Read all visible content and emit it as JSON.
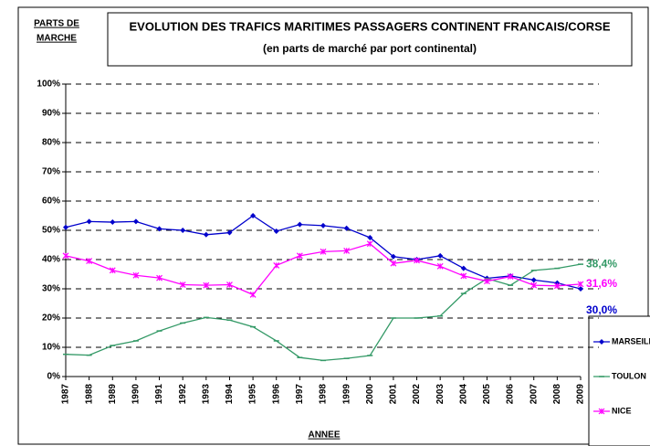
{
  "chart_data": {
    "type": "line",
    "title": "EVOLUTION DES TRAFICS MARITIMES PASSAGERS CONTINENT FRANCAIS/CORSE",
    "subtitle": "(en parts de marché par port continental)",
    "y_label": [
      "PARTS DE",
      "MARCHE"
    ],
    "x_label": "ANNEE",
    "categories": [
      "1987",
      "1988",
      "1989",
      "1990",
      "1991",
      "1992",
      "1993",
      "1994",
      "1995",
      "1996",
      "1997",
      "1998",
      "1999",
      "2000",
      "2001",
      "2002",
      "2003",
      "2004",
      "2005",
      "2006",
      "2007",
      "2008",
      "2009"
    ],
    "ylim": [
      0,
      100
    ],
    "yticks": [
      {
        "value": 0,
        "label": "0%"
      },
      {
        "value": 10,
        "label": "10%"
      },
      {
        "value": 20,
        "label": "20%"
      },
      {
        "value": 30,
        "label": "30%"
      },
      {
        "value": 40,
        "label": "40%"
      },
      {
        "value": 50,
        "label": "50%"
      },
      {
        "value": 60,
        "label": "60%"
      },
      {
        "value": 70,
        "label": "70%"
      },
      {
        "value": 80,
        "label": "80%"
      },
      {
        "value": 90,
        "label": "90%"
      },
      {
        "value": 100,
        "label": "100%"
      }
    ],
    "grid": true,
    "series": [
      {
        "name": "MARSEILLE",
        "color": "#0000cc",
        "marker": "diamond",
        "values": [
          51,
          53,
          52.8,
          53,
          50.5,
          50,
          48.5,
          49.2,
          55,
          49.7,
          52,
          51.6,
          50.7,
          47.5,
          41,
          40,
          41.3,
          37,
          33.6,
          34.4,
          33,
          32,
          30
        ],
        "value_labels": [
          null,
          null,
          null,
          null,
          null,
          null,
          null,
          null,
          null,
          null,
          null,
          null,
          null,
          null,
          null,
          null,
          null,
          null,
          null,
          null,
          null,
          null,
          "30,0%"
        ]
      },
      {
        "name": "TOULON",
        "color": "#339966",
        "marker": "dash",
        "values": [
          7.6,
          7.3,
          10.6,
          12.2,
          15.6,
          18.3,
          20.2,
          19.3,
          17,
          12.2,
          6.5,
          5.5,
          6.2,
          7.2,
          20,
          20,
          20.7,
          28.4,
          33.5,
          31.2,
          36.3,
          37,
          38.4
        ],
        "value_labels": [
          null,
          null,
          null,
          null,
          null,
          null,
          null,
          null,
          null,
          null,
          null,
          null,
          null,
          null,
          null,
          null,
          null,
          null,
          null,
          null,
          null,
          null,
          "38,4%"
        ]
      },
      {
        "name": "NICE",
        "color": "#ff00ff",
        "marker": "star",
        "values": [
          41.3,
          39.5,
          36.3,
          34.6,
          33.7,
          31.4,
          31.2,
          31.4,
          28,
          38,
          41.3,
          42.7,
          43,
          45.4,
          38.7,
          39.7,
          37.7,
          34.4,
          32.6,
          34.2,
          31.2,
          31,
          31.6
        ],
        "value_labels": [
          null,
          null,
          null,
          null,
          null,
          null,
          null,
          null,
          null,
          null,
          null,
          null,
          null,
          null,
          null,
          null,
          null,
          null,
          null,
          null,
          null,
          null,
          "31,6%"
        ]
      }
    ]
  }
}
